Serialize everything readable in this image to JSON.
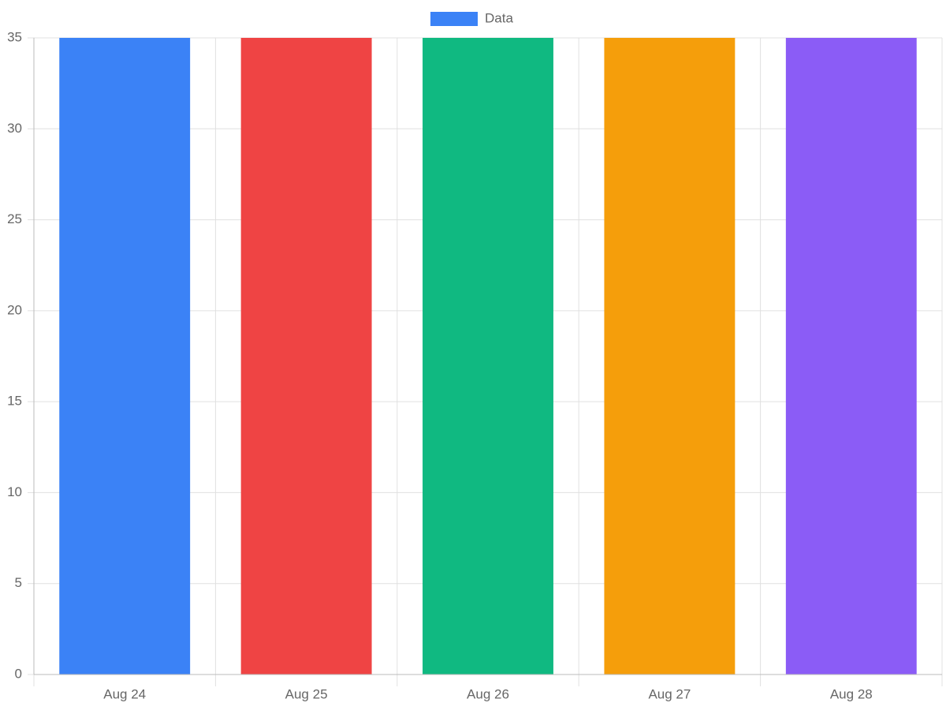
{
  "chart_data": {
    "type": "bar",
    "categories": [
      "Aug 24",
      "Aug 25",
      "Aug 26",
      "Aug 27",
      "Aug 28"
    ],
    "series": [
      {
        "name": "Data",
        "colors": [
          "#3b82f6",
          "#ef4444",
          "#10b981",
          "#f59e0b",
          "#8b5cf6"
        ],
        "values": [
          35,
          35,
          35,
          35,
          35
        ]
      }
    ],
    "ylim": [
      0,
      35
    ],
    "yticks": [
      0,
      5,
      10,
      15,
      20,
      25,
      30,
      35
    ],
    "grid": true,
    "legend": "top"
  }
}
